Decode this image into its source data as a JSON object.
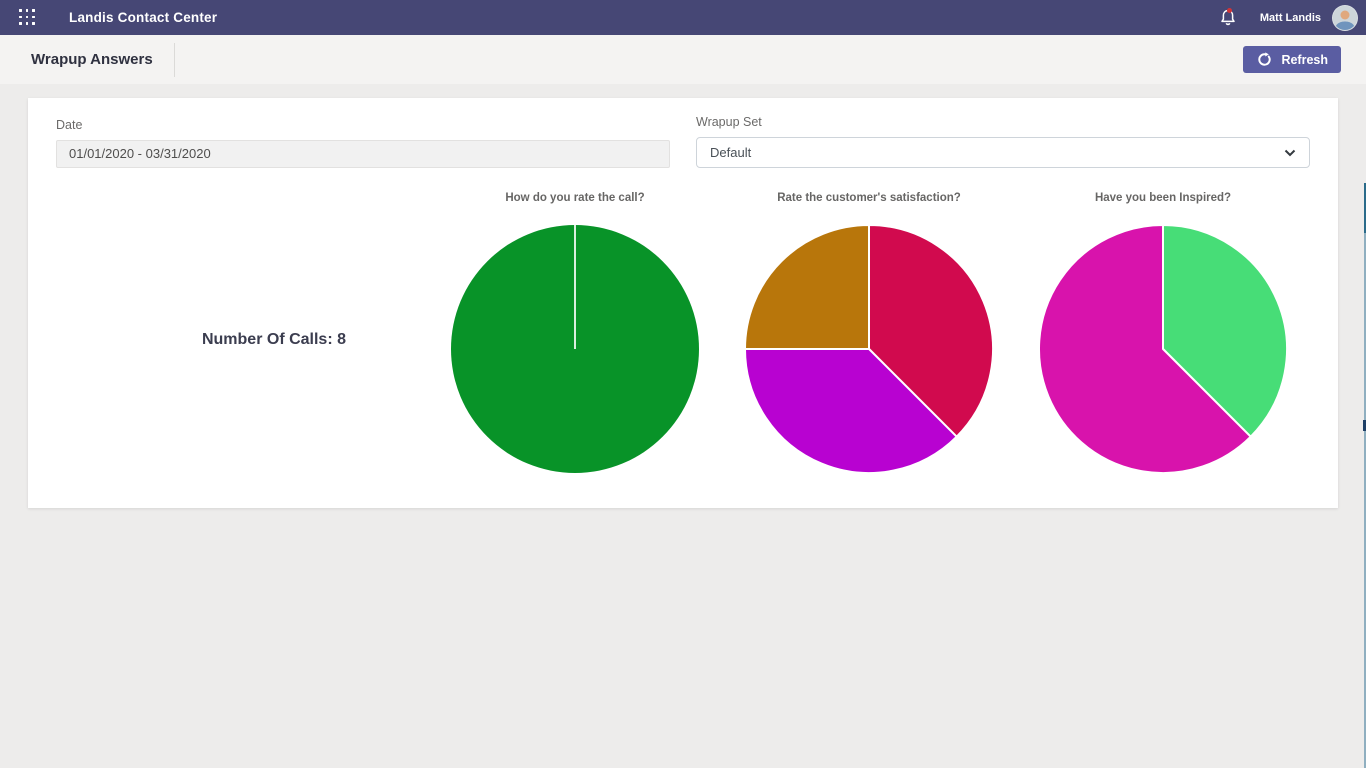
{
  "theme": {
    "header_bg": "#464775",
    "accent_button_bg": "#5a5da2",
    "notification_dot": "#d13438",
    "page_bg": "#edeceb",
    "card_bg": "#ffffff"
  },
  "header": {
    "app_title": "Landis Contact Center",
    "user_name": "Matt Landis",
    "icons": [
      "app-launcher-waffle-icon",
      "bell-icon",
      "user-avatar"
    ]
  },
  "toolbar": {
    "page_title": "Wrapup Answers",
    "refresh_label": "Refresh",
    "refresh_icon": "refresh-clockwise-arrow-icon"
  },
  "filters": {
    "date": {
      "label": "Date",
      "value": "01/01/2020 - 03/31/2020"
    },
    "wrapup_set": {
      "label": "Wrapup Set",
      "value": "Default",
      "icon": "chevron-down-icon"
    }
  },
  "summary": {
    "calls_label": "Number Of Calls:",
    "calls_value": "8"
  },
  "chart_data": [
    {
      "type": "pie",
      "title": "How do you rate the call?",
      "values": [
        8
      ],
      "colors": [
        "#089328"
      ],
      "total_calls": 8,
      "legend": "none",
      "note": "single full slice with white radius divider at 12 o'clock"
    },
    {
      "type": "pie",
      "title": "Rate the customer's satisfaction?",
      "values": [
        3,
        3,
        2
      ],
      "colors": [
        "#d10a4e",
        "#b802d1",
        "#b8760b"
      ],
      "total_calls": 8,
      "legend": "none",
      "note": "slices clockwise from top: crimson 3/8, purple 3/8, orange 2/8"
    },
    {
      "type": "pie",
      "title": "Have you been Inspired?",
      "values": [
        3,
        5
      ],
      "colors": [
        "#47dd77",
        "#d813ac"
      ],
      "total_calls": 8,
      "legend": "none",
      "note": "slices clockwise from top: green 3/8, magenta 5/8"
    }
  ]
}
